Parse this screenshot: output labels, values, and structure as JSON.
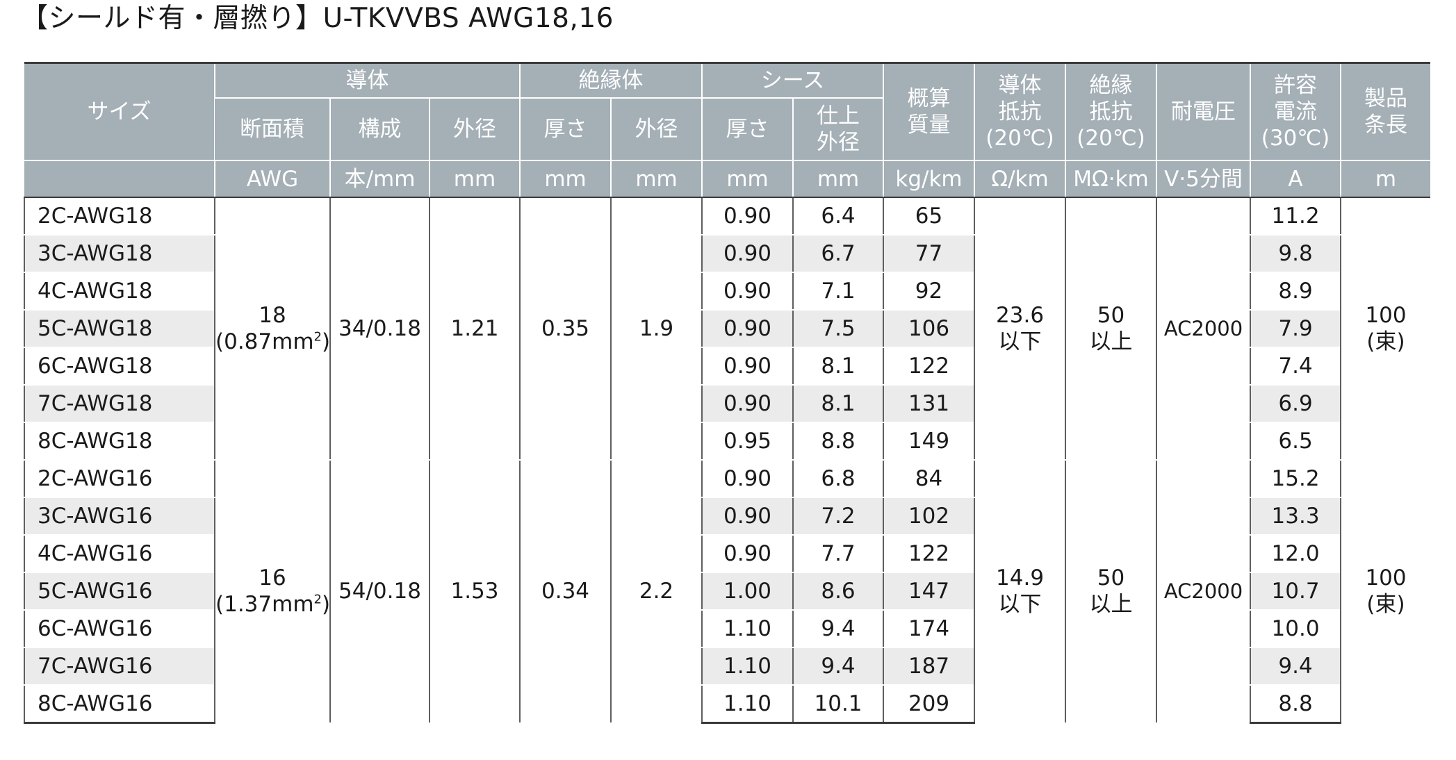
{
  "title": "【シールド有・層撚り】U-TKVVBS AWG18,16",
  "header": {
    "size": "サイズ",
    "conductor": "導体",
    "insulation": "絶縁体",
    "sheath": "シース",
    "weight": [
      "概算",
      "質量"
    ],
    "cond_resistance": [
      "導体",
      "抵抗",
      "(20℃)"
    ],
    "ins_resistance": [
      "絶縁",
      "抵抗",
      "(20℃)"
    ],
    "withstand": "耐電圧",
    "current": [
      "許容",
      "電流",
      "(30℃)"
    ],
    "length": [
      "製品",
      "条長"
    ],
    "sub": {
      "cross_section": "断面積",
      "construction": "構成",
      "cond_od": "外径",
      "ins_thick": "厚さ",
      "ins_od": "外径",
      "sheath_thick": "厚さ",
      "finish_od": [
        "仕上",
        "外径"
      ]
    },
    "units": {
      "cross_section": "AWG",
      "construction": "本/mm",
      "cond_od": "mm",
      "ins_thick": "mm",
      "ins_od": "mm",
      "sheath_thick": "mm",
      "finish_od": "mm",
      "weight": "kg/km",
      "cond_resistance": "Ω/km",
      "ins_resistance": "MΩ·km",
      "withstand": "V·5分間",
      "current": "A",
      "length": "m"
    }
  },
  "groups": [
    {
      "awg": "18",
      "area": "(0.87mm",
      "area_sup": "2",
      "area_close": ")",
      "construction": "34/0.18",
      "cond_od": "1.21",
      "ins_thick": "0.35",
      "ins_od": "1.9",
      "cond_resistance": [
        "23.6",
        "以下"
      ],
      "ins_resistance": [
        "50",
        "以上"
      ],
      "withstand": "AC2000",
      "length": [
        "100",
        "(束)"
      ],
      "rows": [
        {
          "size": "2C-AWG18",
          "sheath": "0.90",
          "od": "6.4",
          "weight": "65",
          "current": "11.2"
        },
        {
          "size": "3C-AWG18",
          "sheath": "0.90",
          "od": "6.7",
          "weight": "77",
          "current": "9.8"
        },
        {
          "size": "4C-AWG18",
          "sheath": "0.90",
          "od": "7.1",
          "weight": "92",
          "current": "8.9"
        },
        {
          "size": "5C-AWG18",
          "sheath": "0.90",
          "od": "7.5",
          "weight": "106",
          "current": "7.9"
        },
        {
          "size": "6C-AWG18",
          "sheath": "0.90",
          "od": "8.1",
          "weight": "122",
          "current": "7.4"
        },
        {
          "size": "7C-AWG18",
          "sheath": "0.90",
          "od": "8.1",
          "weight": "131",
          "current": "6.9"
        },
        {
          "size": "8C-AWG18",
          "sheath": "0.95",
          "od": "8.8",
          "weight": "149",
          "current": "6.5"
        }
      ]
    },
    {
      "awg": "16",
      "area": "(1.37mm",
      "area_sup": "2",
      "area_close": ")",
      "construction": "54/0.18",
      "cond_od": "1.53",
      "ins_thick": "0.34",
      "ins_od": "2.2",
      "cond_resistance": [
        "14.9",
        "以下"
      ],
      "ins_resistance": [
        "50",
        "以上"
      ],
      "withstand": "AC2000",
      "length": [
        "100",
        "(束)"
      ],
      "rows": [
        {
          "size": "2C-AWG16",
          "sheath": "0.90",
          "od": "6.8",
          "weight": "84",
          "current": "15.2"
        },
        {
          "size": "3C-AWG16",
          "sheath": "0.90",
          "od": "7.2",
          "weight": "102",
          "current": "13.3"
        },
        {
          "size": "4C-AWG16",
          "sheath": "0.90",
          "od": "7.7",
          "weight": "122",
          "current": "12.0"
        },
        {
          "size": "5C-AWG16",
          "sheath": "1.00",
          "od": "8.6",
          "weight": "147",
          "current": "10.7"
        },
        {
          "size": "6C-AWG16",
          "sheath": "1.10",
          "od": "9.4",
          "weight": "174",
          "current": "10.0"
        },
        {
          "size": "7C-AWG16",
          "sheath": "1.10",
          "od": "9.4",
          "weight": "187",
          "current": "9.4"
        },
        {
          "size": "8C-AWG16",
          "sheath": "1.10",
          "od": "10.1",
          "weight": "209",
          "current": "8.8"
        }
      ]
    }
  ]
}
